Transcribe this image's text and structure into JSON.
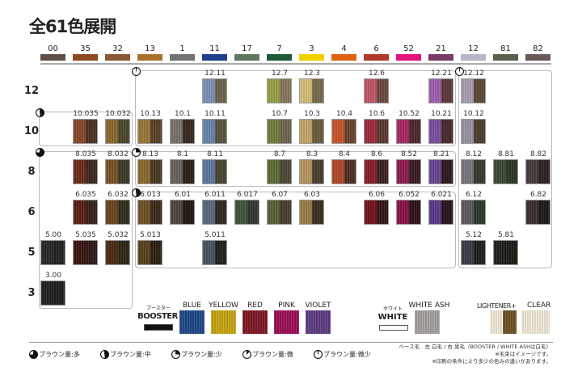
{
  "title": "全61色展開",
  "tones": [
    {
      "code": "00",
      "color": "#5e5049"
    },
    {
      "code": "35",
      "color": "#8c4a22"
    },
    {
      "code": "32",
      "color": "#8a5836"
    },
    {
      "code": "13",
      "color": "#a8722e"
    },
    {
      "code": "1",
      "color": "#727272"
    },
    {
      "code": "11",
      "color": "#1f3f8a"
    },
    {
      "code": "17",
      "color": "#5f7760"
    },
    {
      "code": "7",
      "color": "#1e5a3a"
    },
    {
      "code": "3",
      "color": "#f2d000"
    },
    {
      "code": "4",
      "color": "#e06212"
    },
    {
      "code": "6",
      "color": "#b03a2a"
    },
    {
      "code": "52",
      "color": "#e3127c"
    },
    {
      "code": "21",
      "color": "#7a3c6a"
    },
    {
      "code": "12",
      "color": "#b8b4c8"
    },
    {
      "code": "81",
      "color": "#5a6050"
    },
    {
      "code": "82",
      "color": "#6a5a5a"
    }
  ],
  "levels": [
    {
      "level": "12",
      "chips": [
        {
          "name": "12.11",
          "tone": "11",
          "colors": [
            "#7d93b5",
            "#6e6450"
          ]
        },
        {
          "name": "12.7",
          "tone": "7",
          "colors": [
            "#9aa04a",
            "#857a5e"
          ]
        },
        {
          "name": "12.3",
          "tone": "3",
          "colors": [
            "#d8c07a",
            "#7a6c4e"
          ]
        },
        {
          "name": "12.6",
          "tone": "6",
          "colors": [
            "#c0586a",
            "#6e4a40"
          ]
        },
        {
          "name": "12.21",
          "tone": "21",
          "colors": [
            "#a060b0",
            "#5e3838"
          ]
        },
        {
          "name": "12.12",
          "tone": "12",
          "colors": [
            "#a8a0b0",
            "#5e4a38"
          ]
        }
      ]
    },
    {
      "level": "10",
      "chips": [
        {
          "name": "10.035",
          "tone": "35",
          "colors": [
            "#8a4a2a",
            "#4e3424"
          ]
        },
        {
          "name": "10.032",
          "tone": "32",
          "colors": [
            "#8a6a30",
            "#4e4a2c"
          ]
        },
        {
          "name": "10.13",
          "tone": "13",
          "colors": [
            "#9a7a3a",
            "#5a4428"
          ]
        },
        {
          "name": "10.1",
          "tone": "1",
          "colors": [
            "#7a746e",
            "#3a2a20"
          ]
        },
        {
          "name": "10.11",
          "tone": "11",
          "colors": [
            "#6a86ae",
            "#5a5440"
          ]
        },
        {
          "name": "10.7",
          "tone": "7",
          "colors": [
            "#72803e",
            "#6e6850"
          ]
        },
        {
          "name": "10.3",
          "tone": "3",
          "colors": [
            "#c4a86a",
            "#6a5e40"
          ]
        },
        {
          "name": "10.4",
          "tone": "4",
          "colors": [
            "#c8582a",
            "#6a4430"
          ]
        },
        {
          "name": "10.6",
          "tone": "6",
          "colors": [
            "#a02a3e",
            "#5e3a30"
          ]
        },
        {
          "name": "10.52",
          "tone": "52",
          "colors": [
            "#a82a64",
            "#4e2a2e"
          ]
        },
        {
          "name": "10.21",
          "tone": "21",
          "colors": [
            "#7a50a0",
            "#4a2a2a"
          ]
        },
        {
          "name": "10.12",
          "tone": "12",
          "colors": [
            "#9a94a4",
            "#4a4032"
          ]
        }
      ]
    },
    {
      "level": "8",
      "chips": [
        {
          "name": "8.035",
          "tone": "35",
          "colors": [
            "#6e2c1c",
            "#3e2a20"
          ]
        },
        {
          "name": "8.032",
          "tone": "32",
          "colors": [
            "#7a5428",
            "#3e3a24"
          ]
        },
        {
          "name": "8.13",
          "tone": "13",
          "colors": [
            "#8a6a30",
            "#4a3a24"
          ]
        },
        {
          "name": "8.1",
          "tone": "1",
          "colors": [
            "#6a6460",
            "#2e2018"
          ]
        },
        {
          "name": "8.11",
          "tone": "11",
          "colors": [
            "#6078a0",
            "#4a4636"
          ]
        },
        {
          "name": "8.7",
          "tone": "7",
          "colors": [
            "#5e6e36",
            "#504a38"
          ]
        },
        {
          "name": "8.3",
          "tone": "3",
          "colors": [
            "#b89860",
            "#4a4030"
          ]
        },
        {
          "name": "8.4",
          "tone": "4",
          "colors": [
            "#b04a2a",
            "#4e3024"
          ]
        },
        {
          "name": "8.6",
          "tone": "6",
          "colors": [
            "#8a1e30",
            "#402420"
          ]
        },
        {
          "name": "8.52",
          "tone": "52",
          "colors": [
            "#8e1e4e",
            "#3a1e22"
          ]
        },
        {
          "name": "8.21",
          "tone": "21",
          "colors": [
            "#6a4696",
            "#2e1a1e"
          ]
        },
        {
          "name": "8.12",
          "tone": "12",
          "colors": [
            "#7a767e",
            "#3a3a2e"
          ]
        },
        {
          "name": "8.81",
          "tone": "81",
          "colors": [
            "#3e4a36",
            "#2e3828"
          ]
        },
        {
          "name": "8.82",
          "tone": "82",
          "colors": [
            "#4a3c3c",
            "#2e2424"
          ]
        }
      ]
    },
    {
      "level": "6",
      "chips": [
        {
          "name": "6.035",
          "tone": "35",
          "colors": [
            "#5a2216",
            "#3a221c"
          ]
        },
        {
          "name": "6.032",
          "tone": "32",
          "colors": [
            "#6a4622",
            "#32301e"
          ]
        },
        {
          "name": "6.013",
          "tone": "13",
          "colors": [
            "#6e5228",
            "#3a2c1c"
          ]
        },
        {
          "name": "6.01",
          "tone": "1",
          "colors": [
            "#4e4642",
            "#221812"
          ]
        },
        {
          "name": "6.011",
          "tone": "11",
          "colors": [
            "#5a6a80",
            "#302a22"
          ]
        },
        {
          "name": "6.017",
          "tone": "17",
          "colors": [
            "#445440",
            "#343a30"
          ]
        },
        {
          "name": "6.07",
          "tone": "7",
          "colors": [
            "#5a6238",
            "#4a4030"
          ]
        },
        {
          "name": "6.03",
          "tone": "3",
          "colors": [
            "#9a804a",
            "#3a3020"
          ]
        },
        {
          "name": "6.06",
          "tone": "6",
          "colors": [
            "#74141e",
            "#34181a"
          ]
        },
        {
          "name": "6.052",
          "tone": "52",
          "colors": [
            "#8a1448",
            "#2e141a"
          ]
        },
        {
          "name": "6.021",
          "tone": "21",
          "colors": [
            "#5e3a8e",
            "#2a1420"
          ]
        },
        {
          "name": "6.12",
          "tone": "12",
          "colors": [
            "#5e5a62",
            "#2e3a2a"
          ]
        },
        {
          "name": "6.82",
          "tone": "82",
          "colors": [
            "#3e3030",
            "#1e1a1a"
          ]
        }
      ]
    },
    {
      "level": "5",
      "chips": [
        {
          "name": "5.00",
          "tone": "00",
          "colors": [
            "#2a2a28",
            "#242422"
          ]
        },
        {
          "name": "5.035",
          "tone": "35",
          "colors": [
            "#3a1812",
            "#301c18"
          ]
        },
        {
          "name": "5.032",
          "tone": "32",
          "colors": [
            "#4e2e16",
            "#2e2a1a"
          ]
        },
        {
          "name": "5.013",
          "tone": "13",
          "colors": [
            "#5a421e",
            "#2e2414"
          ]
        },
        {
          "name": "5.011",
          "tone": "11",
          "colors": [
            "#4a5666",
            "#24221c"
          ]
        },
        {
          "name": "5.12",
          "tone": "12",
          "colors": [
            "#3a3e46",
            "#1e221c"
          ]
        },
        {
          "name": "5.81",
          "tone": "81",
          "colors": [
            "#24221c",
            "#1e1e18"
          ]
        }
      ]
    },
    {
      "level": "3",
      "chips": [
        {
          "name": "3.00",
          "tone": "00",
          "colors": [
            "#222422",
            "#1e201e"
          ]
        }
      ]
    }
  ],
  "booster": {
    "kana": "ブースター",
    "label": "BOOSTER",
    "color": "#111111",
    "items": [
      {
        "label": "BLUE",
        "color": "#244a8a"
      },
      {
        "label": "YELLOW",
        "color": "#c8a810"
      },
      {
        "label": "RED",
        "color": "#801a26"
      },
      {
        "label": "PINK",
        "color": "#a01058"
      },
      {
        "label": "VIOLET",
        "color": "#5e3e86"
      }
    ]
  },
  "white": {
    "kana": "ホワイト",
    "label": "WHITE",
    "ash_label": "WHITE ASH",
    "ash_color": "#a8a4a2"
  },
  "lightener": {
    "label": "LIGHTENER+",
    "clear_label": "CLEAR",
    "colors": [
      "#f4eedc",
      "#6e5428",
      "#f4eedc"
    ]
  },
  "brown_legend": [
    {
      "label": "ブラウン量:多",
      "fraction": 0.75
    },
    {
      "label": "ブラウン量:中",
      "fraction": 0.5
    },
    {
      "label": "ブラウン量:少",
      "fraction": 0.25
    },
    {
      "label": "ブラウン量:微",
      "fraction": 0.12
    },
    {
      "label": "ブラウン量:微少",
      "fraction": 0.03
    }
  ],
  "notes": [
    "ベース毛　左 白毛 / 右 黒毛（BOOSTER / WHITE ASHは白毛）",
    "※毛束はイメージです。",
    "※印刷の条件により多少の色みの違いがあります。"
  ]
}
